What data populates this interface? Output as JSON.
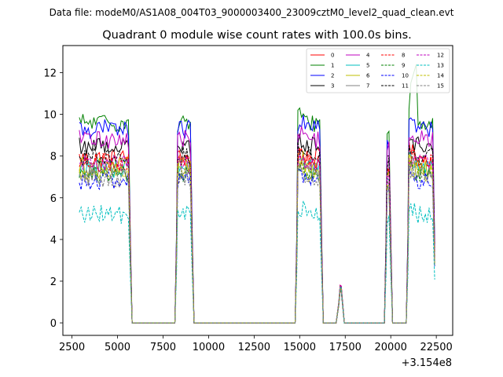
{
  "chart_data": {
    "type": "line",
    "suptitle": "Data file: modeM0/AS1A08_004T03_9000003400_23009cztM0_level2_quad_clean.evt",
    "title": "Quadrant 0 module wise count rates with 100.0s bins.",
    "xlabel": "",
    "ylabel": "",
    "x_offset_label": "+3.154e8",
    "xlim": [
      2000,
      23400
    ],
    "ylim": [
      -0.6,
      13.3
    ],
    "x_ticks": [
      2500,
      5000,
      7500,
      10000,
      12500,
      15000,
      17500,
      20000,
      22500
    ],
    "x_tick_labels": [
      "2500",
      "5000",
      "7500",
      "10000",
      "12500",
      "15000",
      "17500",
      "20000",
      "22500"
    ],
    "y_ticks": [
      0,
      2,
      4,
      6,
      8,
      10,
      12
    ],
    "y_tick_labels": [
      "0",
      "2",
      "4",
      "6",
      "8",
      "10",
      "12"
    ],
    "legend_position": "top-right",
    "segments": [
      {
        "start": 2900,
        "end": 5650,
        "ramp_in": false,
        "ramp_out": true
      },
      {
        "start": 8300,
        "end": 9050,
        "ramp_in": true,
        "ramp_out": true
      },
      {
        "start": 14900,
        "end": 16150,
        "ramp_in": true,
        "ramp_out": true
      },
      {
        "start": 19800,
        "end": 19950,
        "ramp_in": true,
        "ramp_out": true
      },
      {
        "start": 21000,
        "end": 22350,
        "ramp_in": true,
        "ramp_out": true
      }
    ],
    "bump": {
      "start": 17000,
      "end": 17450,
      "peak_x": 17250,
      "peak": 1.8
    },
    "series": [
      {
        "name": "0",
        "color": "#ff0000",
        "dash": "solid",
        "mean": 7.9
      },
      {
        "name": "1",
        "color": "#008000",
        "dash": "solid",
        "mean": 9.6
      },
      {
        "name": "2",
        "color": "#0000ff",
        "dash": "solid",
        "mean": 9.3
      },
      {
        "name": "3",
        "color": "#000000",
        "dash": "solid",
        "mean": 8.5
      },
      {
        "name": "4",
        "color": "#bf00bf",
        "dash": "solid",
        "mean": 8.8
      },
      {
        "name": "5",
        "color": "#00bfbf",
        "dash": "solid",
        "mean": 7.4
      },
      {
        "name": "6",
        "color": "#bfbf00",
        "dash": "solid",
        "mean": 7.5
      },
      {
        "name": "7",
        "color": "#808080",
        "dash": "solid",
        "mean": 7.3
      },
      {
        "name": "8",
        "color": "#ff0000",
        "dash": "dashed",
        "mean": 7.7
      },
      {
        "name": "9",
        "color": "#008000",
        "dash": "dashed",
        "mean": 7.1
      },
      {
        "name": "10",
        "color": "#0000ff",
        "dash": "dashed",
        "mean": 6.8
      },
      {
        "name": "11",
        "color": "#000000",
        "dash": "dashed",
        "mean": 8.0
      },
      {
        "name": "12",
        "color": "#bf00bf",
        "dash": "dashed",
        "mean": 7.6
      },
      {
        "name": "13",
        "color": "#00bfbf",
        "dash": "dashed",
        "mean": 5.2
      },
      {
        "name": "14",
        "color": "#bfbf00",
        "dash": "dashed",
        "mean": 7.2
      },
      {
        "name": "15",
        "color": "#808080",
        "dash": "dashed",
        "mean": 6.9
      }
    ]
  }
}
